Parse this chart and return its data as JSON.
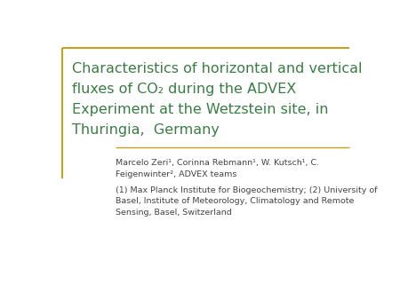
{
  "background_color": "#ffffff",
  "title_text": "Characteristics of horizontal and vertical\nfluxes of CO₂ during the ADVEX\nExperiment at the Wetzstein site, in\nThuringia,  Germany",
  "title_color": "#3a7d44",
  "title_fontsize": 11.5,
  "border_color": "#c8a020",
  "separator_color": "#c8a020",
  "author_text": "Marcelo Zeri¹, Corinna Rebmann¹, W. Kutsch¹, C.\nFeigenwinter², ADVEX teams",
  "affil_text": "(1) Max Planck Institute for Biogeochemistry; (2) University of\nBasel, Institute of Meteorology, Climatology and Remote\nSensing, Basel, Switzerland",
  "author_fontsize": 6.8,
  "affil_fontsize": 6.8,
  "text_color": "#444444"
}
